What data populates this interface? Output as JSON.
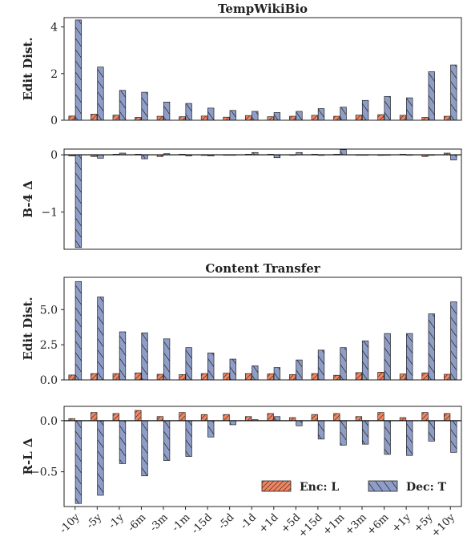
{
  "chart_data": [
    {
      "id": "p1",
      "type": "bar",
      "title": "TempWikiBio",
      "ylabel": "Edit Dist.",
      "ylim": [
        0,
        4.4
      ],
      "yticks": [
        0,
        2,
        4
      ],
      "ytick_labels": [
        "0",
        "2",
        "4"
      ],
      "categories": [
        "-10y",
        "-5y",
        "-1y",
        "-6m",
        "-3m",
        "-1m",
        "-15d",
        "-5d",
        "-1d",
        "+1d",
        "+5d",
        "+15d",
        "+1m",
        "+3m",
        "+6m",
        "+1y",
        "+5y",
        "+10y"
      ],
      "series": [
        {
          "name": "Enc: L",
          "values": [
            0.18,
            0.26,
            0.22,
            0.12,
            0.17,
            0.15,
            0.18,
            0.13,
            0.2,
            0.15,
            0.17,
            0.21,
            0.17,
            0.22,
            0.24,
            0.21,
            0.12,
            0.17
          ]
        },
        {
          "name": "Dec: T",
          "values": [
            4.3,
            2.28,
            1.28,
            1.2,
            0.78,
            0.72,
            0.52,
            0.42,
            0.38,
            0.33,
            0.38,
            0.5,
            0.56,
            0.85,
            1.02,
            0.96,
            2.08,
            2.37
          ]
        }
      ]
    },
    {
      "id": "p2",
      "type": "bar",
      "title": "",
      "ylabel": "B-4 Δ",
      "ylim": [
        -1.65,
        0.1
      ],
      "yticks": [
        0,
        -1
      ],
      "ytick_labels": [
        "0",
        "−1"
      ],
      "categories": [
        "-10y",
        "-5y",
        "-1y",
        "-6m",
        "-3m",
        "-1m",
        "-15d",
        "-5d",
        "-1d",
        "+1d",
        "+5d",
        "+15d",
        "+1m",
        "+3m",
        "+6m",
        "+1y",
        "+5y",
        "+10y"
      ],
      "series": [
        {
          "name": "Enc: L",
          "values": [
            -0.02,
            -0.03,
            0.01,
            0.01,
            -0.03,
            0.01,
            -0.01,
            0.0,
            0.01,
            0.01,
            0.0,
            0.01,
            0.01,
            0.0,
            -0.01,
            0.01,
            -0.03,
            0.03
          ]
        },
        {
          "name": "Dec: T",
          "values": [
            -1.62,
            -0.06,
            0.03,
            -0.07,
            0.02,
            -0.02,
            -0.02,
            0.0,
            0.04,
            -0.05,
            0.04,
            -0.01,
            0.09,
            0.0,
            0.0,
            0.0,
            0.0,
            -0.09
          ]
        }
      ]
    },
    {
      "id": "p3",
      "type": "bar",
      "title": "Content Transfer",
      "ylabel": "Edit Dist.",
      "ylim": [
        0,
        7.3
      ],
      "yticks": [
        0,
        2.5,
        5
      ],
      "ytick_labels": [
        "0.0",
        "2.5",
        "5.0"
      ],
      "categories": [
        "-10y",
        "-5y",
        "-1y",
        "-6m",
        "-3m",
        "-1m",
        "-15d",
        "-5d",
        "-1d",
        "+1d",
        "+5d",
        "+15d",
        "+1m",
        "+3m",
        "+6m",
        "+1y",
        "+5y",
        "+10y"
      ],
      "series": [
        {
          "name": "Enc: L",
          "values": [
            0.35,
            0.45,
            0.45,
            0.5,
            0.4,
            0.38,
            0.45,
            0.48,
            0.45,
            0.43,
            0.38,
            0.45,
            0.33,
            0.52,
            0.55,
            0.42,
            0.5,
            0.4
          ]
        },
        {
          "name": "Dec: T",
          "values": [
            7.0,
            5.9,
            3.42,
            3.35,
            2.92,
            2.3,
            1.92,
            1.48,
            1.0,
            0.88,
            1.42,
            2.12,
            2.3,
            2.78,
            3.3,
            3.3,
            4.7,
            5.55
          ]
        }
      ]
    },
    {
      "id": "p4",
      "type": "bar",
      "title": "",
      "ylabel": "R-L Δ",
      "ylim": [
        -0.84,
        0.14
      ],
      "yticks": [
        0,
        -0.5
      ],
      "ytick_labels": [
        "0.0",
        "−0.5"
      ],
      "categories": [
        "-10y",
        "-5y",
        "-1y",
        "-6m",
        "-3m",
        "-1m",
        "-15d",
        "-5d",
        "-1d",
        "+1d",
        "+5d",
        "+15d",
        "+1m",
        "+3m",
        "+6m",
        "+1y",
        "+5y",
        "+10y"
      ],
      "show_xticks": true,
      "legend": {
        "position": "lower-right",
        "entries": [
          "Enc: L",
          "Dec: T"
        ]
      },
      "series": [
        {
          "name": "Enc: L",
          "values": [
            0.02,
            0.08,
            0.07,
            0.1,
            0.04,
            0.08,
            0.06,
            0.06,
            0.04,
            0.07,
            0.03,
            0.06,
            0.07,
            0.04,
            0.08,
            0.03,
            0.08,
            0.07
          ]
        },
        {
          "name": "Dec: T",
          "values": [
            -0.81,
            -0.73,
            -0.42,
            -0.54,
            -0.39,
            -0.35,
            -0.16,
            -0.04,
            0.01,
            0.04,
            -0.05,
            -0.18,
            -0.24,
            -0.23,
            -0.33,
            -0.34,
            -0.2,
            -0.31
          ]
        }
      ]
    }
  ],
  "colors": {
    "enc": "#f4845f",
    "dec": "#8f9ec9",
    "edge": "#222222"
  }
}
